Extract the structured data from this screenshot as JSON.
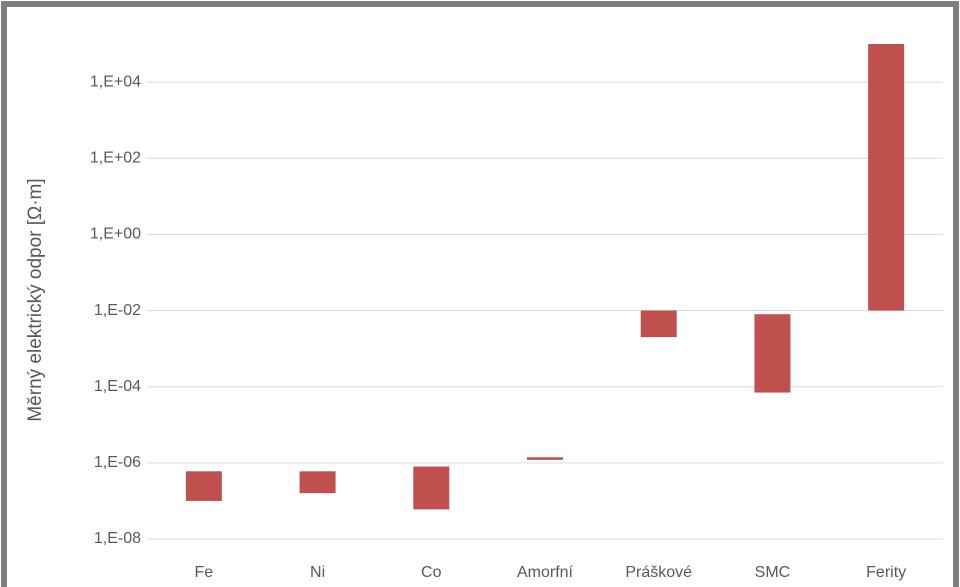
{
  "chart_data": {
    "type": "range_bar",
    "y_label": "Měrný elektrický odpor [Ω·m]",
    "categories": [
      "Fe",
      "Ni",
      "Co",
      "Amorfní",
      "Práškové",
      "SMC",
      "Ferity"
    ],
    "low": [
      1e-07,
      1.6e-07,
      6e-08,
      1.2e-06,
      0.002,
      7e-05,
      0.01
    ],
    "high": [
      6e-07,
      6e-07,
      8e-07,
      1.4e-06,
      0.01,
      0.008,
      100000.0
    ],
    "color": "#c0504d",
    "ylog": true,
    "ylim": [
      1e-08,
      100000.0
    ],
    "yticks": [
      {
        "value": 1e-08,
        "label": "1,E-08"
      },
      {
        "value": 1e-06,
        "label": "1,E-06"
      },
      {
        "value": 0.0001,
        "label": "1,E-04"
      },
      {
        "value": 0.01,
        "label": "1,E-02"
      },
      {
        "value": 1,
        "label": "1,E+00"
      },
      {
        "value": 100,
        "label": "1,E+02"
      },
      {
        "value": 10000,
        "label": "1,E+04"
      }
    ],
    "grid": true
  }
}
